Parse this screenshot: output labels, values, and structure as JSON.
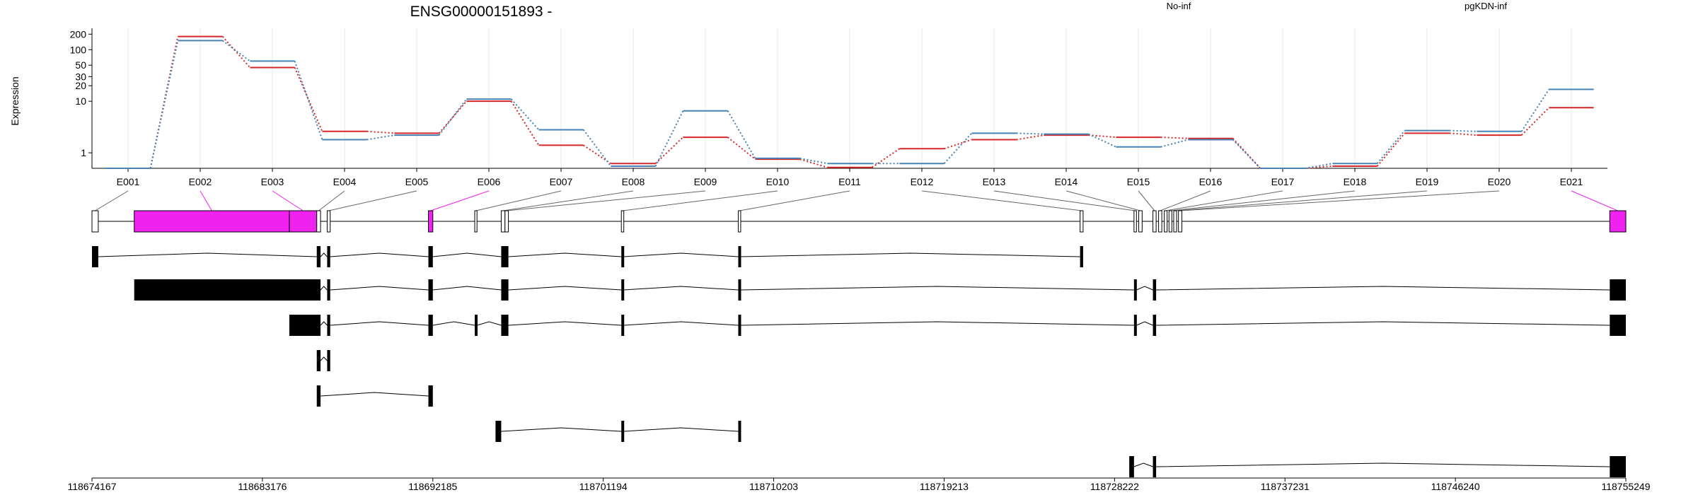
{
  "chart_data": {
    "type": "line",
    "title": "ENSG00000151893 -",
    "ylabel": "Expression",
    "yscale": "log",
    "ylim": [
      0.5,
      260
    ],
    "yticks": [
      1,
      10,
      20,
      30,
      50,
      100,
      200
    ],
    "ytick_labels": [
      "1",
      "10",
      "20",
      "30",
      "50",
      "100",
      "200"
    ],
    "grid": true,
    "legend_position": "top",
    "categories": [
      "E001",
      "E002",
      "E003",
      "E004",
      "E005",
      "E006",
      "E007",
      "E008",
      "E009",
      "E010",
      "E011",
      "E012",
      "E013",
      "E014",
      "E015",
      "E016",
      "E017",
      "E018",
      "E019",
      "E020",
      "E021"
    ],
    "series": [
      {
        "name": "No-inf",
        "color": "#d62728",
        "values": [
          0.5,
          180,
          45,
          2.6,
          2.4,
          10,
          1.4,
          0.62,
          2.0,
          0.75,
          0.52,
          1.2,
          1.8,
          2.2,
          2.0,
          1.9,
          0.5,
          0.55,
          2.4,
          2.2,
          7.5
        ]
      },
      {
        "name": "pgKDN-inf",
        "color": "#4682b4",
        "values": [
          0.5,
          150,
          60,
          1.8,
          2.2,
          11,
          2.8,
          0.55,
          6.5,
          0.78,
          0.62,
          0.62,
          2.4,
          2.3,
          1.3,
          1.8,
          0.5,
          0.62,
          2.7,
          2.6,
          17
        ]
      }
    ],
    "genomic_axis": {
      "ticks": [
        "118674167",
        "118683176",
        "118692185",
        "118701194",
        "118710203",
        "118719213",
        "118728222",
        "118737231",
        "118746240",
        "118755249"
      ],
      "start": 118674167,
      "end": 118755249
    },
    "gene_model": {
      "highlight_color": "#f022f0",
      "highlighted_exons": [
        "E002",
        "E003",
        "E006",
        "E021"
      ],
      "exon_bins": [
        {
          "id": "E001",
          "start": 118674167,
          "end": 118674500
        },
        {
          "id": "E002",
          "start": 118676400,
          "end": 118684600
        },
        {
          "id": "E003",
          "start": 118684600,
          "end": 118686050
        },
        {
          "id": "E004",
          "start": 118686050,
          "end": 118686250
        },
        {
          "id": "E005",
          "start": 118686600,
          "end": 118686760
        },
        {
          "id": "E006",
          "start": 118691950,
          "end": 118692185
        },
        {
          "id": "E007",
          "start": 118694400,
          "end": 118694520
        },
        {
          "id": "E008",
          "start": 118695800,
          "end": 118696000
        },
        {
          "id": "E009",
          "start": 118696000,
          "end": 118696180
        },
        {
          "id": "E010",
          "start": 118702150,
          "end": 118702280
        },
        {
          "id": "E011",
          "start": 118708330,
          "end": 118708460
        },
        {
          "id": "E012",
          "start": 118726400,
          "end": 118726560
        },
        {
          "id": "E013",
          "start": 118729250,
          "end": 118729380
        },
        {
          "id": "E014",
          "start": 118729500,
          "end": 118729680
        },
        {
          "id": "E015",
          "start": 118730250,
          "end": 118730420
        },
        {
          "id": "E016",
          "start": 118730550,
          "end": 118730720
        },
        {
          "id": "E017",
          "start": 118730850,
          "end": 118731000
        },
        {
          "id": "E018",
          "start": 118731100,
          "end": 118731250
        },
        {
          "id": "E019",
          "start": 118731350,
          "end": 118731500
        },
        {
          "id": "E020",
          "start": 118731600,
          "end": 118731780
        },
        {
          "id": "E021",
          "start": 118754400,
          "end": 118755249
        }
      ],
      "transcripts": [
        {
          "exons": [
            [
              118674167,
              118674500
            ],
            [
              118686050,
              118686250
            ],
            [
              118686600,
              118686760
            ],
            [
              118691950,
              118692185
            ],
            [
              118695800,
              118696180
            ],
            [
              118702150,
              118702280
            ],
            [
              118708330,
              118708460
            ],
            [
              118726400,
              118726560
            ]
          ]
        },
        {
          "exons": [
            [
              118676400,
              118686250
            ],
            [
              118686600,
              118686760
            ],
            [
              118691950,
              118692185
            ],
            [
              118695800,
              118696180
            ],
            [
              118702150,
              118702280
            ],
            [
              118708330,
              118708460
            ],
            [
              118729250,
              118729380
            ],
            [
              118730250,
              118730420
            ],
            [
              118754400,
              118755249
            ]
          ]
        },
        {
          "exons": [
            [
              118684600,
              118686250
            ],
            [
              118686600,
              118686760
            ],
            [
              118691950,
              118692185
            ],
            [
              118694400,
              118694520
            ],
            [
              118695800,
              118696180
            ],
            [
              118702150,
              118702280
            ],
            [
              118708330,
              118708460
            ],
            [
              118729250,
              118729380
            ],
            [
              118730250,
              118730420
            ],
            [
              118754400,
              118755249
            ]
          ]
        },
        {
          "exons": [
            [
              118686050,
              118686250
            ],
            [
              118686600,
              118686760
            ]
          ]
        },
        {
          "exons": [
            [
              118686050,
              118686250
            ],
            [
              118691950,
              118692185
            ]
          ]
        },
        {
          "exons": [
            [
              118695500,
              118695800
            ],
            [
              118702150,
              118702280
            ],
            [
              118708330,
              118708400
            ]
          ]
        },
        {
          "exons": [
            [
              118729000,
              118729250
            ],
            [
              118730250,
              118730420
            ],
            [
              118754400,
              118755249
            ]
          ]
        }
      ]
    }
  }
}
